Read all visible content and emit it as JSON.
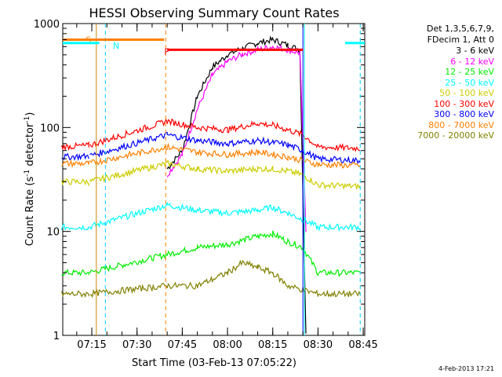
{
  "chart_data": {
    "type": "line",
    "title": "HESSI Observing Summary Count Rates",
    "xlabel": "Start Time (03-Feb-13 07:05:22)",
    "ylabel_main": "Count Rate (s",
    "ylabel_sup1": "-1",
    "ylabel_mid": " detector",
    "ylabel_sup2": "-1",
    "ylabel_end": ")",
    "y_scale": "log",
    "ylim": [
      1,
      1000
    ],
    "xlim": [
      "07:05:22",
      "08:45:30"
    ],
    "x_ticks": [
      "07:15",
      "07:30",
      "07:45",
      "08:00",
      "08:15",
      "08:30",
      "08:45"
    ],
    "y_ticks": [
      "1",
      "10",
      "100",
      "1000"
    ],
    "legend_header": [
      "Det 1,3,5,6,7,9,",
      "FDecim 1, Att 0"
    ],
    "legend": [
      {
        "name": "3 - 6 keV",
        "color": "#000000"
      },
      {
        "name": "6 - 12 keV",
        "color": "#ff00ff"
      },
      {
        "name": "12 - 25 keV",
        "color": "#00ee00"
      },
      {
        "name": "25 - 50 keV",
        "color": "#00ffff"
      },
      {
        "name": "50 - 100 keV",
        "color": "#cccc00"
      },
      {
        "name": "100 - 300 keV",
        "color": "#ff0000"
      },
      {
        "name": "300 - 800 keV",
        "color": "#0000ff"
      },
      {
        "name": "800 - 7000 keV",
        "color": "#ff8000"
      },
      {
        "name": "7000 - 20000 keV",
        "color": "#808000"
      }
    ],
    "flags": [
      {
        "label": "S",
        "color": "#ff8000",
        "start": "07:05:22",
        "end": "07:39:00",
        "value": 700
      },
      {
        "label": "N",
        "color": "#00ffff",
        "start": "07:05:22",
        "end": "07:17:30",
        "value": 650
      },
      {
        "label": "F",
        "color": "#ff0000",
        "start": "07:40:00",
        "end": "08:25:00",
        "value": 560
      },
      {
        "label": "",
        "color": "#00ffff",
        "start": "08:39:00",
        "end": "08:45:30",
        "value": 650
      }
    ],
    "series": [
      {
        "name": "3 - 6 keV",
        "points": [
          [
            "07:40",
            "40"
          ],
          [
            "07:45",
            "60"
          ],
          [
            "07:50",
            "200"
          ],
          [
            "07:55",
            "380"
          ],
          [
            "08:00",
            "500"
          ],
          [
            "08:05",
            "580"
          ],
          [
            "08:10",
            "650"
          ],
          [
            "08:15",
            "700"
          ],
          [
            "08:20",
            "620"
          ],
          [
            "08:24",
            "560"
          ],
          [
            "08:26",
            "1"
          ]
        ]
      },
      {
        "name": "6 - 12 keV",
        "points": [
          [
            "07:40",
            "35"
          ],
          [
            "07:45",
            "55"
          ],
          [
            "07:50",
            "150"
          ],
          [
            "07:55",
            "320"
          ],
          [
            "08:00",
            "430"
          ],
          [
            "08:05",
            "510"
          ],
          [
            "08:10",
            "560"
          ],
          [
            "08:15",
            "600"
          ],
          [
            "08:20",
            "560"
          ],
          [
            "08:24",
            "520"
          ],
          [
            "08:26",
            "10"
          ]
        ]
      },
      {
        "name": "12 - 25 keV",
        "points": [
          [
            "07:05",
            "4"
          ],
          [
            "07:14",
            "4"
          ],
          [
            "07:40",
            "6"
          ],
          [
            "07:50",
            "7"
          ],
          [
            "08:00",
            "7.5"
          ],
          [
            "08:10",
            "9"
          ],
          [
            "08:15",
            "9.5"
          ],
          [
            "08:20",
            "8"
          ],
          [
            "08:25",
            "7"
          ],
          [
            "08:30",
            "4"
          ],
          [
            "08:44",
            "4"
          ]
        ]
      },
      {
        "name": "25 - 50 keV",
        "points": [
          [
            "07:05",
            "11"
          ],
          [
            "07:14",
            "11"
          ],
          [
            "07:40",
            "18"
          ],
          [
            "07:50",
            "16"
          ],
          [
            "08:00",
            "15"
          ],
          [
            "08:10",
            "16"
          ],
          [
            "08:15",
            "17"
          ],
          [
            "08:20",
            "15"
          ],
          [
            "08:25",
            "13"
          ],
          [
            "08:30",
            "11"
          ],
          [
            "08:44",
            "11"
          ]
        ]
      },
      {
        "name": "50 - 100 keV",
        "points": [
          [
            "07:05",
            "30"
          ],
          [
            "07:14",
            "30"
          ],
          [
            "07:40",
            "45"
          ],
          [
            "07:50",
            "40"
          ],
          [
            "08:00",
            "38"
          ],
          [
            "08:10",
            "40"
          ],
          [
            "08:15",
            "40"
          ],
          [
            "08:20",
            "38"
          ],
          [
            "08:25",
            "35"
          ],
          [
            "08:30",
            "28"
          ],
          [
            "08:44",
            "27"
          ]
        ]
      },
      {
        "name": "100 - 300 keV",
        "points": [
          [
            "07:05",
            "65"
          ],
          [
            "07:14",
            "67"
          ],
          [
            "07:40",
            "115"
          ],
          [
            "07:50",
            "100"
          ],
          [
            "08:00",
            "95"
          ],
          [
            "08:10",
            "110"
          ],
          [
            "08:15",
            "105"
          ],
          [
            "08:20",
            "95"
          ],
          [
            "08:25",
            "85"
          ],
          [
            "08:30",
            "65"
          ],
          [
            "08:44",
            "63"
          ]
        ]
      },
      {
        "name": "300 - 800 keV",
        "points": [
          [
            "07:05",
            "52"
          ],
          [
            "07:14",
            "53"
          ],
          [
            "07:40",
            "85"
          ],
          [
            "07:50",
            "75"
          ],
          [
            "08:00",
            "70"
          ],
          [
            "08:10",
            "75"
          ],
          [
            "08:15",
            "72"
          ],
          [
            "08:20",
            "68"
          ],
          [
            "08:25",
            "60"
          ],
          [
            "08:30",
            "50"
          ],
          [
            "08:44",
            "48"
          ]
        ]
      },
      {
        "name": "800 - 7000 keV",
        "points": [
          [
            "07:05",
            "45"
          ],
          [
            "07:14",
            "45"
          ],
          [
            "07:40",
            "65"
          ],
          [
            "07:50",
            "58"
          ],
          [
            "08:00",
            "55"
          ],
          [
            "08:10",
            "58"
          ],
          [
            "08:15",
            "55"
          ],
          [
            "08:20",
            "52"
          ],
          [
            "08:25",
            "48"
          ],
          [
            "08:30",
            "44"
          ],
          [
            "08:44",
            "43"
          ]
        ]
      },
      {
        "name": "7000 - 20000 keV",
        "points": [
          [
            "07:05",
            "2.5"
          ],
          [
            "07:14",
            "2.5"
          ],
          [
            "07:40",
            "3"
          ],
          [
            "07:50",
            "3"
          ],
          [
            "08:00",
            "4"
          ],
          [
            "08:05",
            "5"
          ],
          [
            "08:10",
            "4.5"
          ],
          [
            "08:15",
            "4"
          ],
          [
            "08:20",
            "3"
          ],
          [
            "08:30",
            "2.5"
          ],
          [
            "08:44",
            "2.5"
          ]
        ]
      }
    ],
    "vlines": [
      {
        "time": "07:16:30",
        "color": "#cc8800",
        "style": "solid"
      },
      {
        "time": "07:19:30",
        "color": "#00ccff",
        "style": "dashed"
      },
      {
        "time": "07:39:30",
        "color": "#ff8000",
        "style": "dashed"
      },
      {
        "time": "08:25:00",
        "color": "#0000ff",
        "style": "solid"
      },
      {
        "time": "08:25:30",
        "color": "#00ffff",
        "style": "solid"
      },
      {
        "time": "08:44:00",
        "color": "#00ccff",
        "style": "dashed"
      }
    ]
  },
  "timestamp": "4-Feb-2013 17:21"
}
